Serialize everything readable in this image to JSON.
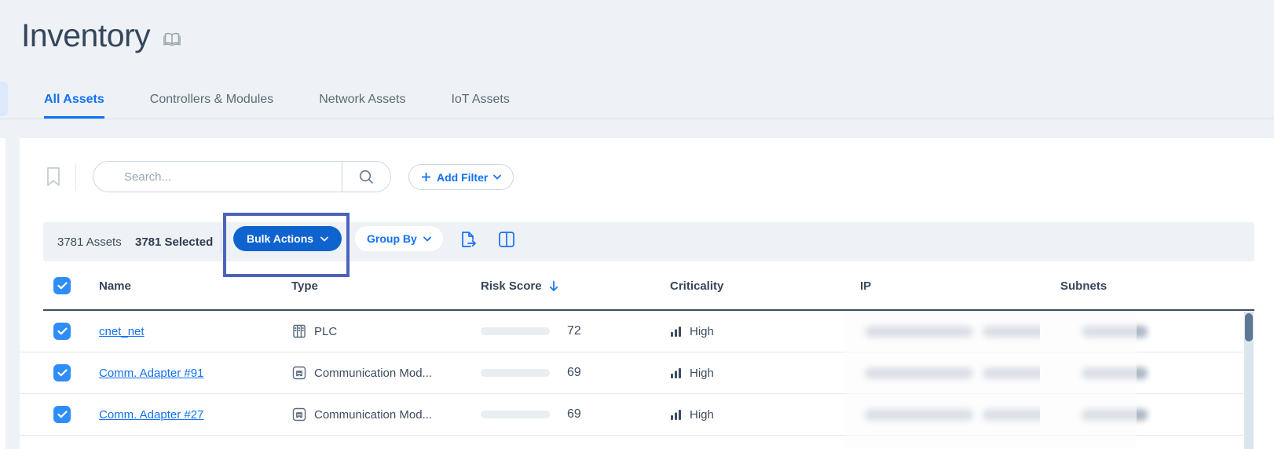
{
  "page": {
    "title": "Inventory"
  },
  "tabs": [
    {
      "label": "All Assets",
      "active": true
    },
    {
      "label": "Controllers & Modules",
      "active": false
    },
    {
      "label": "Network Assets",
      "active": false
    },
    {
      "label": "IoT Assets",
      "active": false
    }
  ],
  "search": {
    "placeholder": "Search..."
  },
  "filter_bar": {
    "add_filter_label": "Add Filter"
  },
  "toolbar": {
    "assets_count": "3781 Assets",
    "selected_count": "3781 Selected",
    "bulk_actions_label": "Bulk Actions",
    "group_by_label": "Group By"
  },
  "table": {
    "columns": {
      "name": "Name",
      "type": "Type",
      "risk_score": "Risk Score",
      "criticality": "Criticality",
      "ip": "IP",
      "subnets": "Subnets"
    },
    "sorted_by": "Risk Score",
    "sort_direction": "desc",
    "rows": [
      {
        "name": "cnet_net",
        "type": "PLC",
        "type_icon": "plc-icon",
        "risk_score": 72,
        "risk_level": "high",
        "criticality": "High",
        "ip_redacted": true,
        "subnets_redacted": true
      },
      {
        "name": "Comm. Adapter #91",
        "type": "Communication Mod...",
        "type_icon": "communication-module-icon",
        "risk_score": 69,
        "risk_level": "medium",
        "criticality": "High",
        "ip_redacted": true,
        "subnets_redacted": true
      },
      {
        "name": "Comm. Adapter #27",
        "type": "Communication Mod...",
        "type_icon": "communication-module-icon",
        "risk_score": 69,
        "risk_level": "medium",
        "criticality": "High",
        "ip_redacted": true,
        "subnets_redacted": true
      }
    ]
  },
  "colors": {
    "accent_blue": "#1470f2",
    "bulk_button_blue": "#0e63cf",
    "risk_high": "#e0004f",
    "risk_medium": "#f9b233",
    "highlight_box": "#4c63bd",
    "header_navy": "#36465a"
  }
}
